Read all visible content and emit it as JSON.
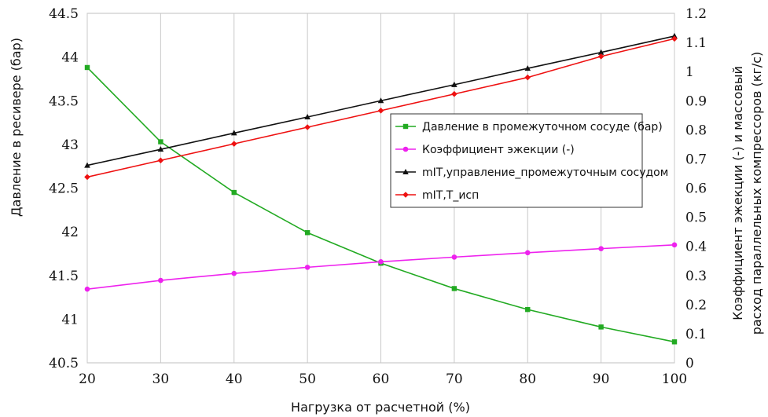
{
  "chart_data": {
    "type": "line",
    "xlabel": "Нагрузка от расчетной (%)",
    "ylabel_left": "Давление в ресивере (бар)",
    "ylabel_right_lines": [
      "Коэффициент эжекции (-) и массовый",
      "расход параллельных компрессоров (кг/с)"
    ],
    "x": [
      20,
      30,
      40,
      50,
      60,
      70,
      80,
      90,
      100
    ],
    "x_ticks": [
      "20",
      "30",
      "40",
      "50",
      "60",
      "70",
      "80",
      "90",
      "100"
    ],
    "xlim": [
      20,
      100
    ],
    "ylim_left": [
      40.5,
      44.5
    ],
    "ylim_right": [
      0,
      1.2
    ],
    "y_ticks_left": [
      "40.5",
      "41",
      "41.5",
      "42",
      "42.5",
      "43",
      "43.5",
      "44",
      "44.5"
    ],
    "y_ticks_right": [
      "0",
      "0.1",
      "0.2",
      "0.3",
      "0.4",
      "0.5",
      "0.6",
      "0.7",
      "0.8",
      "0.9",
      "1",
      "1.1",
      "1.2"
    ],
    "grid": "vertical",
    "legend_position": "center-right",
    "series": [
      {
        "name": "Давление в промежуточном сосуде (бар)",
        "axis": "left",
        "color": "#22aa22",
        "marker": "square",
        "values": [
          43.88,
          43.03,
          42.45,
          41.99,
          41.64,
          41.35,
          41.11,
          40.91,
          40.74
        ]
      },
      {
        "name": "Коэффициент эжекции (-)",
        "axis": "right",
        "color": "#ee22ee",
        "marker": "circle",
        "values": [
          0.253,
          0.283,
          0.307,
          0.328,
          0.347,
          0.363,
          0.378,
          0.392,
          0.405
        ]
      },
      {
        "name": "mIT,управление_промежуточным сосудом",
        "axis": "right",
        "color": "#111111",
        "marker": "triangle",
        "values": [
          0.678,
          0.733,
          0.789,
          0.844,
          0.9,
          0.955,
          1.011,
          1.066,
          1.122
        ]
      },
      {
        "name": "mIT,T_исп",
        "axis": "right",
        "color": "#ee1111",
        "marker": "diamond",
        "values": [
          0.638,
          0.695,
          0.752,
          0.809,
          0.866,
          0.923,
          0.98,
          1.052,
          1.113
        ]
      }
    ]
  }
}
